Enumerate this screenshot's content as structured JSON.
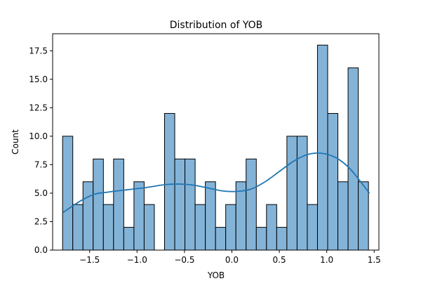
{
  "chart_data": {
    "type": "bar",
    "title": "Distribution of YOB",
    "xlabel": "YOB",
    "ylabel": "Count",
    "xlim": [
      -1.89,
      1.55
    ],
    "ylim": [
      0,
      19
    ],
    "xticks": [
      -1.5,
      -1.0,
      -0.5,
      0.0,
      0.5,
      1.0,
      1.5
    ],
    "xtick_labels": [
      "−1.5",
      "−1.0",
      "−0.5",
      "0.0",
      "0.5",
      "1.0",
      "1.5"
    ],
    "yticks": [
      0,
      2.5,
      5,
      7.5,
      10,
      12.5,
      15,
      17.5
    ],
    "ytick_labels": [
      "0.0",
      "2.5",
      "5.0",
      "7.5",
      "10.0",
      "12.5",
      "15.0",
      "17.5"
    ],
    "bin_start": -1.785,
    "bin_width": 0.1075,
    "counts": [
      10,
      4,
      6,
      8,
      4,
      8,
      2,
      6,
      4,
      0,
      12,
      8,
      8,
      4,
      6,
      2,
      4,
      6,
      8,
      2,
      4,
      2,
      10,
      10,
      4,
      18,
      12,
      6,
      16,
      6
    ],
    "kde": {
      "x": [
        -1.78,
        -1.6,
        -1.45,
        -1.3,
        -1.1,
        -0.9,
        -0.7,
        -0.55,
        -0.4,
        -0.25,
        -0.1,
        0.05,
        0.2,
        0.35,
        0.5,
        0.65,
        0.8,
        0.95,
        1.1,
        1.25,
        1.45
      ],
      "y": [
        3.3,
        4.3,
        4.9,
        5.1,
        5.3,
        5.5,
        5.75,
        5.8,
        5.7,
        5.45,
        5.2,
        5.15,
        5.35,
        6.0,
        6.9,
        7.8,
        8.4,
        8.5,
        8.1,
        7.1,
        5.0
      ]
    },
    "bar_color": "#84b3d8",
    "bar_edge": "#000000",
    "line_color": "#1f77b4",
    "grid": false
  }
}
